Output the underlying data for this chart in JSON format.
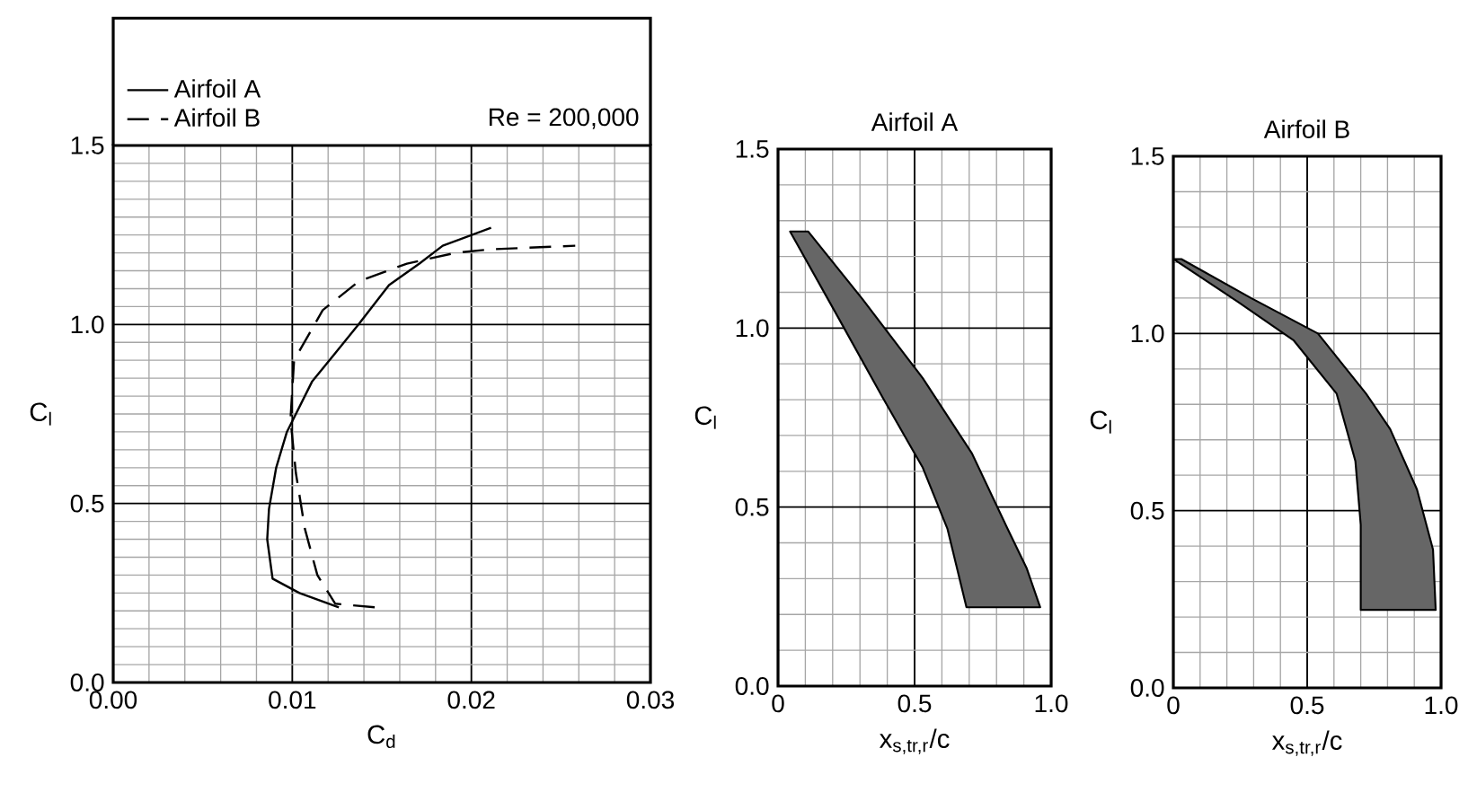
{
  "chart_data": [
    {
      "type": "line",
      "xlabel": "C$_{d}$",
      "ylabel": "C$_{l}$",
      "xlim": [
        0,
        0.03
      ],
      "ylim": [
        0,
        1.5
      ],
      "xticks": [
        {
          "value": 0,
          "label": "0.00"
        },
        {
          "value": 0.01,
          "label": "0.01"
        },
        {
          "value": 0.02,
          "label": "0.02"
        },
        {
          "value": 0.03,
          "label": "0.03"
        }
      ],
      "yticks": [
        {
          "value": 0,
          "label": "0.0"
        },
        {
          "value": 0.5,
          "label": "0.5"
        },
        {
          "value": 1,
          "label": "1.0"
        },
        {
          "value": 1.5,
          "label": "1.5"
        }
      ],
      "grid": true,
      "legend": "top",
      "annotations": [
        "Re = 200,000"
      ],
      "series": [
        {
          "name": "Airfoil A",
          "color": "#000000",
          "line_style": "solid",
          "x": [
            0.0126,
            0.0104,
            0.0089,
            0.0086,
            0.0087,
            0.0091,
            0.0097,
            0.0111,
            0.0124,
            0.0137,
            0.0154,
            0.0171,
            0.0184,
            0.0211
          ],
          "values": [
            0.21,
            0.25,
            0.29,
            0.4,
            0.485,
            0.6,
            0.7,
            0.84,
            0.92,
            1.0,
            1.11,
            1.17,
            1.22,
            1.27
          ]
        },
        {
          "name": "Airfoil B",
          "color": "#000000",
          "line_style": "dashed",
          "x": [
            0.0146,
            0.0124,
            0.0114,
            0.0107,
            0.0102,
            0.0099,
            0.0101,
            0.0117,
            0.0137,
            0.0164,
            0.0191,
            0.0211,
            0.0258
          ],
          "values": [
            0.21,
            0.22,
            0.3,
            0.43,
            0.585,
            0.735,
            0.9,
            1.04,
            1.12,
            1.17,
            1.2,
            1.21,
            1.22
          ]
        }
      ]
    },
    {
      "type": "area",
      "title": "Airfoil A",
      "xlabel": "x$_{s,tr,r}$/c",
      "ylabel": "C$_{l}$",
      "xlim": [
        0,
        1
      ],
      "ylim": [
        0,
        1.5
      ],
      "xticks": [
        0,
        0.5,
        {
          "value": 1,
          "label": "1.0"
        }
      ],
      "yticks": [
        {
          "value": 0,
          "label": "0.0"
        },
        {
          "value": 0.5,
          "label": "0.5"
        },
        {
          "value": 1,
          "label": "1.0"
        },
        {
          "value": 1.5,
          "label": "1.5"
        }
      ],
      "grid": true,
      "series": [
        {
          "color": "#666666",
          "x": [
            0.044,
            0.22,
            0.38,
            0.53,
            0.62,
            0.69,
            0.96,
            0.91,
            0.84,
            0.71,
            0.53,
            0.31,
            0.11
          ],
          "values": [
            1.27,
            1.03,
            0.81,
            0.61,
            0.44,
            0.22,
            0.22,
            0.33,
            0.44,
            0.65,
            0.86,
            1.08,
            1.27
          ]
        }
      ]
    },
    {
      "type": "area",
      "title": "Airfoil B",
      "xlabel": "x$_{s,tr,r}$/c",
      "ylabel": "C$_{l}$",
      "xlim": [
        0,
        1
      ],
      "ylim": [
        0,
        1.5
      ],
      "xticks": [
        0,
        0.5,
        {
          "value": 1,
          "label": "1.0"
        }
      ],
      "yticks": [
        {
          "value": 0,
          "label": "0.0"
        },
        {
          "value": 0.5,
          "label": "0.5"
        },
        {
          "value": 1,
          "label": "1.0"
        },
        {
          "value": 1.5,
          "label": "1.5"
        }
      ],
      "grid": true,
      "series": [
        {
          "color": "#666666",
          "x": [
            0,
            0.24,
            0.45,
            0.61,
            0.68,
            0.7,
            0.7,
            0.98,
            0.97,
            0.91,
            0.81,
            0.72,
            0.54,
            0.29,
            0.03
          ],
          "values": [
            1.21,
            1.09,
            0.98,
            0.83,
            0.64,
            0.46,
            0.22,
            0.22,
            0.39,
            0.56,
            0.73,
            0.83,
            1.0,
            1.1,
            1.21
          ]
        }
      ]
    }
  ]
}
